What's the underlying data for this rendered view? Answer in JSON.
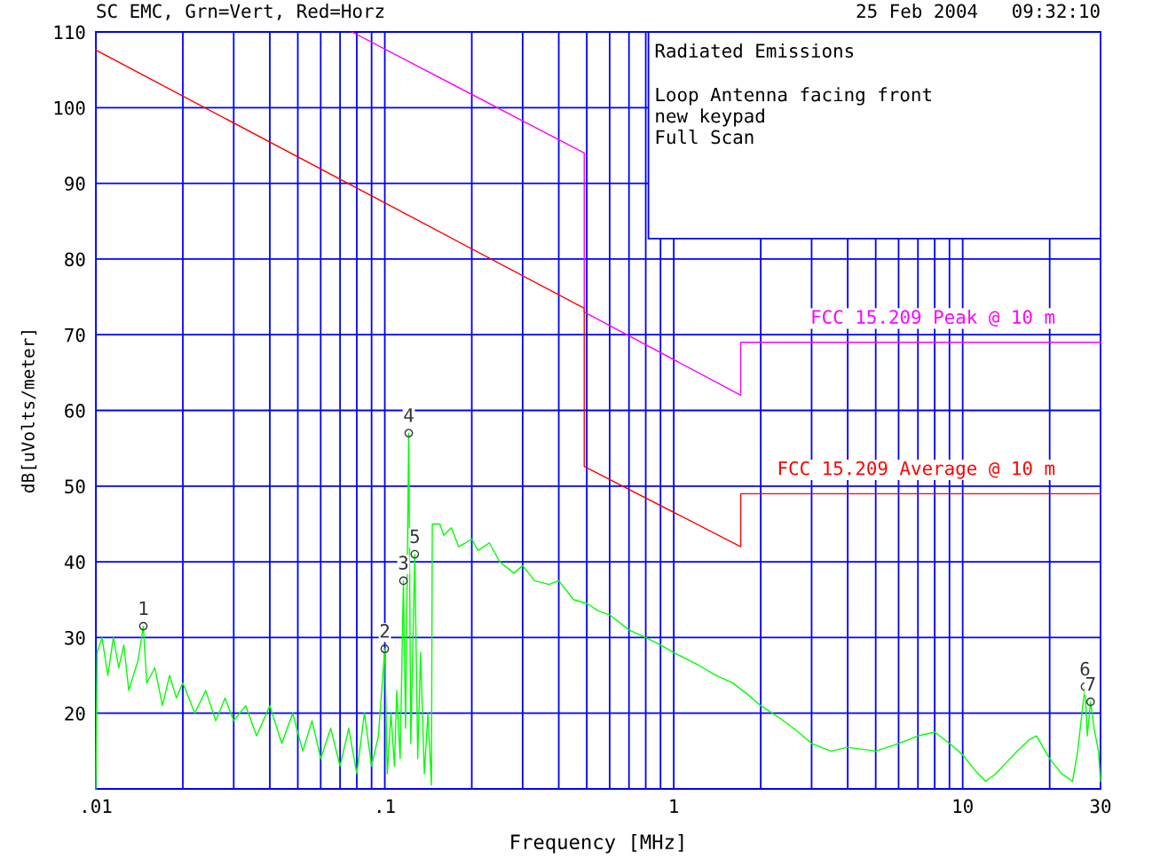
{
  "chart_data": {
    "type": "line",
    "title": "SC EMC, Grn=Vert, Red=Horz",
    "subtitle": "25 Feb 2004   09:32:10",
    "xlabel": "Frequency [MHz]",
    "ylabel": "dB[uVolts/meter]",
    "log": "x",
    "grid": true,
    "legend": false,
    "marker": "none",
    "line_style": "solid",
    "xlim": [
      0.01,
      30
    ],
    "ylim": [
      10,
      110
    ],
    "xticks": [
      {
        "value": 0.01,
        "label": ".01"
      },
      {
        "value": 0.02,
        "label": null
      },
      {
        "value": 0.03,
        "label": null
      },
      {
        "value": 0.04,
        "label": null
      },
      {
        "value": 0.05,
        "label": null
      },
      {
        "value": 0.06,
        "label": null
      },
      {
        "value": 0.07,
        "label": null
      },
      {
        "value": 0.08,
        "label": null
      },
      {
        "value": 0.09,
        "label": null
      },
      {
        "value": 0.1,
        "label": ".1"
      },
      {
        "value": 0.2,
        "label": null
      },
      {
        "value": 0.3,
        "label": null
      },
      {
        "value": 0.4,
        "label": null
      },
      {
        "value": 0.5,
        "label": null
      },
      {
        "value": 0.6,
        "label": null
      },
      {
        "value": 0.7,
        "label": null
      },
      {
        "value": 0.8,
        "label": null
      },
      {
        "value": 0.9,
        "label": null
      },
      {
        "value": 1,
        "label": "1"
      },
      {
        "value": 2,
        "label": null
      },
      {
        "value": 3,
        "label": null
      },
      {
        "value": 4,
        "label": null
      },
      {
        "value": 5,
        "label": null
      },
      {
        "value": 6,
        "label": null
      },
      {
        "value": 7,
        "label": null
      },
      {
        "value": 8,
        "label": null
      },
      {
        "value": 9,
        "label": null
      },
      {
        "value": 10,
        "label": "10"
      },
      {
        "value": 20,
        "label": null
      },
      {
        "value": 30,
        "label": "30"
      }
    ],
    "yticks": [
      20,
      30,
      40,
      50,
      60,
      70,
      80,
      90,
      100,
      110
    ],
    "series": [
      {
        "color": "#00ff00",
        "x": [
          0.01,
          0.0101,
          0.0105,
          0.011,
          0.0115,
          0.012,
          0.0125,
          0.013,
          0.014,
          0.0146,
          0.015,
          0.016,
          0.017,
          0.018,
          0.019,
          0.02,
          0.022,
          0.024,
          0.026,
          0.028,
          0.03,
          0.033,
          0.036,
          0.04,
          0.044,
          0.048,
          0.052,
          0.056,
          0.06,
          0.065,
          0.07,
          0.075,
          0.08,
          0.085,
          0.09,
          0.095,
          0.1,
          0.102,
          0.105,
          0.108,
          0.11,
          0.113,
          0.116,
          0.118,
          0.121,
          0.123,
          0.127,
          0.13,
          0.133,
          0.137,
          0.141,
          0.145,
          0.146,
          0.155,
          0.16,
          0.17,
          0.18,
          0.19,
          0.2,
          0.21,
          0.23,
          0.25,
          0.28,
          0.3,
          0.33,
          0.37,
          0.4,
          0.45,
          0.5,
          0.55,
          0.6,
          0.7,
          0.8,
          0.9,
          1.0,
          1.2,
          1.4,
          1.6,
          1.8,
          2.0,
          2.3,
          2.6,
          3.0,
          3.5,
          4,
          5,
          6,
          7,
          8,
          9,
          10,
          11,
          12,
          13,
          15,
          17,
          18,
          20,
          22,
          24,
          25,
          26.5,
          27,
          27.7,
          28.5,
          29.5,
          30
        ],
        "values": [
          10,
          28,
          30,
          25,
          30,
          26,
          29,
          23,
          27,
          31.5,
          24,
          26,
          21,
          25,
          22,
          24,
          20,
          23,
          19,
          22,
          19,
          21,
          17,
          21,
          16,
          20,
          15,
          19,
          14,
          18,
          13,
          18,
          12,
          20,
          13,
          17,
          28.5,
          12,
          20,
          13,
          23,
          14,
          37.5,
          18,
          57,
          16,
          41,
          14,
          28,
          12,
          20,
          10.5,
          45,
          45,
          43.5,
          44.5,
          42,
          42.5,
          43,
          41.5,
          42.5,
          40,
          38.5,
          39.5,
          37.5,
          37,
          37.5,
          35,
          34.5,
          33.5,
          33,
          31,
          30,
          29,
          28,
          26.5,
          25,
          24,
          22.5,
          21,
          19.5,
          18,
          16,
          15,
          15.5,
          15,
          16,
          17,
          17.5,
          16,
          14.5,
          12.5,
          11,
          12,
          14.5,
          16.5,
          17,
          14,
          12,
          11,
          15,
          23.5,
          17,
          21.5,
          18,
          15,
          11
        ]
      },
      {
        "name": "FCC 15.209 Peak @ 10 m",
        "color": "#ff00ff",
        "x": [
          0.077,
          0.49,
          0.49,
          1.705,
          1.705,
          30
        ],
        "values": [
          110,
          94,
          73,
          62,
          69,
          69
        ]
      },
      {
        "name": "FCC 15.209 Average @ 10 m",
        "color": "#ff0000",
        "x": [
          0.01,
          0.49,
          0.49,
          1.705,
          1.705,
          30
        ],
        "values": [
          107.6,
          73.5,
          52.6,
          42,
          49,
          49
        ]
      }
    ],
    "annotations": [
      "Radiated Emissions",
      "Loop Antenna facing front",
      "new keypad",
      "Full Scan",
      {
        "text": "1",
        "x": 0.0146,
        "y": 31.5
      },
      {
        "text": "2",
        "x": 0.1,
        "y": 28.5
      },
      {
        "text": "3",
        "x": 0.116,
        "y": 37.5
      },
      {
        "text": "4",
        "x": 0.121,
        "y": 57
      },
      {
        "text": "5",
        "x": 0.127,
        "y": 41
      },
      {
        "text": "6",
        "x": 26.5,
        "y": 23.5
      },
      {
        "text": "7",
        "x": 27.7,
        "y": 21.5
      }
    ]
  }
}
